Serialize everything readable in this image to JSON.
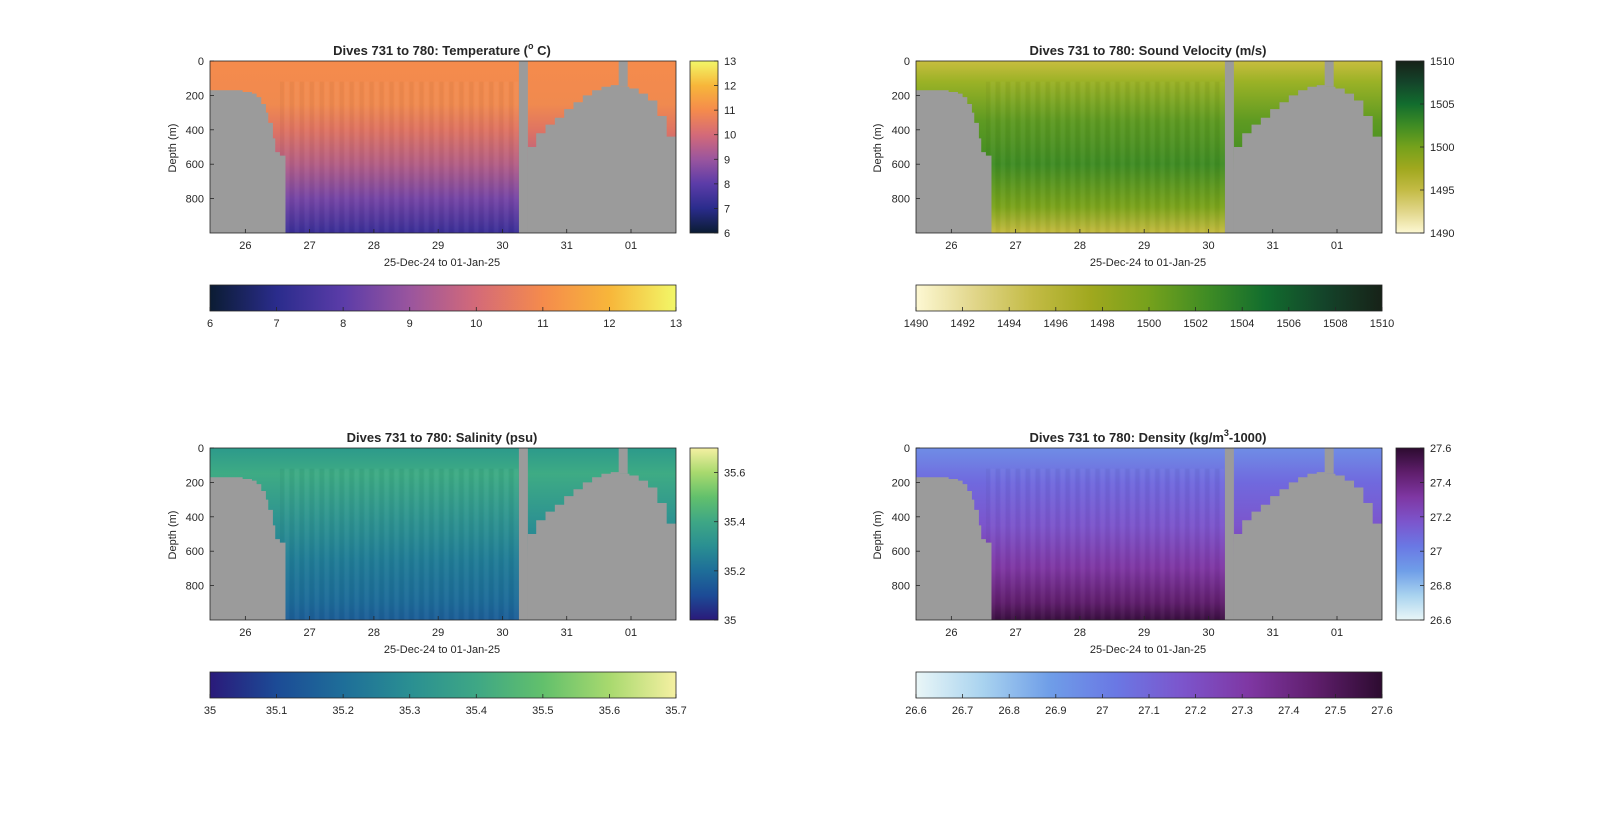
{
  "figure": {
    "panels": [
      {
        "id": "temperature",
        "title_main": "Dives 731 to 780: Temperature (",
        "title_sup": "o",
        "title_tail": " C)",
        "ylabel": "Depth (m)",
        "xlabel": "25-Dec-24 to 01-Jan-25",
        "yticks": [
          "0",
          "200",
          "400",
          "600",
          "800"
        ],
        "xticks": [
          "26",
          "27",
          "28",
          "29",
          "30",
          "31",
          "01"
        ],
        "side_cbar_ticks": [
          "13",
          "12",
          "11",
          "10",
          "9",
          "8",
          "7",
          "6"
        ],
        "bottom_cbar_ticks": [
          "6",
          "7",
          "8",
          "9",
          "10",
          "11",
          "12",
          "13"
        ],
        "colormap": [
          "#0b1c33",
          "#2a2c8c",
          "#5b3ca8",
          "#9a559e",
          "#d46a78",
          "#f58b4c",
          "#f7b63a",
          "#f2f768"
        ],
        "range": [
          6,
          13
        ]
      },
      {
        "id": "sound-velocity",
        "title_main": "Dives 731 to 780: Sound Velocity (m/s)",
        "title_sup": "",
        "title_tail": "",
        "ylabel": "Depth (m)",
        "xlabel": "25-Dec-24 to 01-Jan-25",
        "yticks": [
          "0",
          "200",
          "400",
          "600",
          "800"
        ],
        "xticks": [
          "26",
          "27",
          "28",
          "29",
          "30",
          "31",
          "01"
        ],
        "side_cbar_ticks": [
          "1510",
          "1505",
          "1500",
          "1495",
          "1490"
        ],
        "bottom_cbar_ticks": [
          "1490",
          "1492",
          "1494",
          "1496",
          "1498",
          "1500",
          "1502",
          "1504",
          "1506",
          "1508",
          "1510"
        ],
        "colormap": [
          "#fdf8d3",
          "#e1d68a",
          "#c3bb45",
          "#a0a81e",
          "#75a11c",
          "#3f8c24",
          "#126d2e",
          "#14442a",
          "#172218"
        ],
        "range": [
          1490,
          1510
        ]
      },
      {
        "id": "salinity",
        "title_main": "Dives 731 to 780: Salinity (psu)",
        "title_sup": "",
        "title_tail": "",
        "ylabel": "Depth (m)",
        "xlabel": "25-Dec-24 to 01-Jan-25",
        "yticks": [
          "0",
          "200",
          "400",
          "600",
          "800"
        ],
        "xticks": [
          "26",
          "27",
          "28",
          "29",
          "30",
          "31",
          "01"
        ],
        "side_cbar_ticks": [
          "35.6",
          "35.4",
          "35.2",
          "35"
        ],
        "bottom_cbar_ticks": [
          "35",
          "35.1",
          "35.2",
          "35.3",
          "35.4",
          "35.5",
          "35.6",
          "35.7"
        ],
        "colormap": [
          "#2a1a7a",
          "#1c4b96",
          "#1e6e99",
          "#2a8f92",
          "#3ea785",
          "#62c06c",
          "#a8d96e",
          "#f5f0a2"
        ],
        "range": [
          35,
          35.7
        ]
      },
      {
        "id": "density",
        "title_main": "Dives 731 to 780: Density (kg/m",
        "title_sup": "3",
        "title_tail": "-1000)",
        "ylabel": "Depth (m)",
        "xlabel": "25-Dec-24 to 01-Jan-25",
        "yticks": [
          "0",
          "200",
          "400",
          "600",
          "800"
        ],
        "xticks": [
          "26",
          "27",
          "28",
          "29",
          "30",
          "31",
          "01"
        ],
        "side_cbar_ticks": [
          "27.6",
          "27.4",
          "27.2",
          "27",
          "26.8",
          "26.6"
        ],
        "bottom_cbar_ticks": [
          "26.6",
          "26.7",
          "26.8",
          "26.9",
          "27",
          "27.1",
          "27.2",
          "27.3",
          "27.4",
          "27.5",
          "27.6"
        ],
        "colormap": [
          "#e9f6f7",
          "#a9d3ef",
          "#6f9ee8",
          "#6a78e4",
          "#7c55cc",
          "#7f37a3",
          "#5f1e6c",
          "#2d0b30"
        ],
        "range": [
          26.6,
          27.6
        ]
      }
    ]
  },
  "chart_data": [
    {
      "type": "heatmap",
      "title": "Dives 731 to 780: Temperature (o C)",
      "xlabel": "25-Dec-24 to 01-Jan-25",
      "ylabel": "Depth (m)",
      "xlim": [
        "25-Dec-24",
        "01-Jan-25"
      ],
      "ylim": [
        0,
        1000
      ],
      "y_reversed": true,
      "colorbar_range": [
        6,
        13
      ],
      "surface_value": 10.8,
      "deep_value_900m": 7.0,
      "missing_color": "#9b9b9b"
    },
    {
      "type": "heatmap",
      "title": "Dives 731 to 780: Sound Velocity (m/s)",
      "xlabel": "25-Dec-24 to 01-Jan-25",
      "ylabel": "Depth (m)",
      "xlim": [
        "25-Dec-24",
        "01-Jan-25"
      ],
      "ylim": [
        0,
        1000
      ],
      "y_reversed": true,
      "colorbar_range": [
        1490,
        1510
      ],
      "surface_value": 1496,
      "mid_value_500m": 1501,
      "deep_value_950m": 1497,
      "missing_color": "#9b9b9b"
    },
    {
      "type": "heatmap",
      "title": "Dives 731 to 780: Salinity (psu)",
      "xlabel": "25-Dec-24 to 01-Jan-25",
      "ylabel": "Depth (m)",
      "xlim": [
        "25-Dec-24",
        "01-Jan-25"
      ],
      "ylim": [
        0,
        1000
      ],
      "y_reversed": true,
      "colorbar_range": [
        35,
        35.7
      ],
      "surface_value": 35.35,
      "deep_value_900m": 35.22,
      "missing_color": "#9b9b9b"
    },
    {
      "type": "heatmap",
      "title": "Dives 731 to 780: Density (kg/m3-1000)",
      "xlabel": "25-Dec-24 to 01-Jan-25",
      "ylabel": "Depth (m)",
      "xlim": [
        "25-Dec-24",
        "01-Jan-25"
      ],
      "ylim": [
        0,
        1000
      ],
      "y_reversed": true,
      "colorbar_range": [
        26.6,
        27.6
      ],
      "surface_value": 27.02,
      "deep_value_950m": 27.55,
      "missing_color": "#9b9b9b"
    }
  ]
}
